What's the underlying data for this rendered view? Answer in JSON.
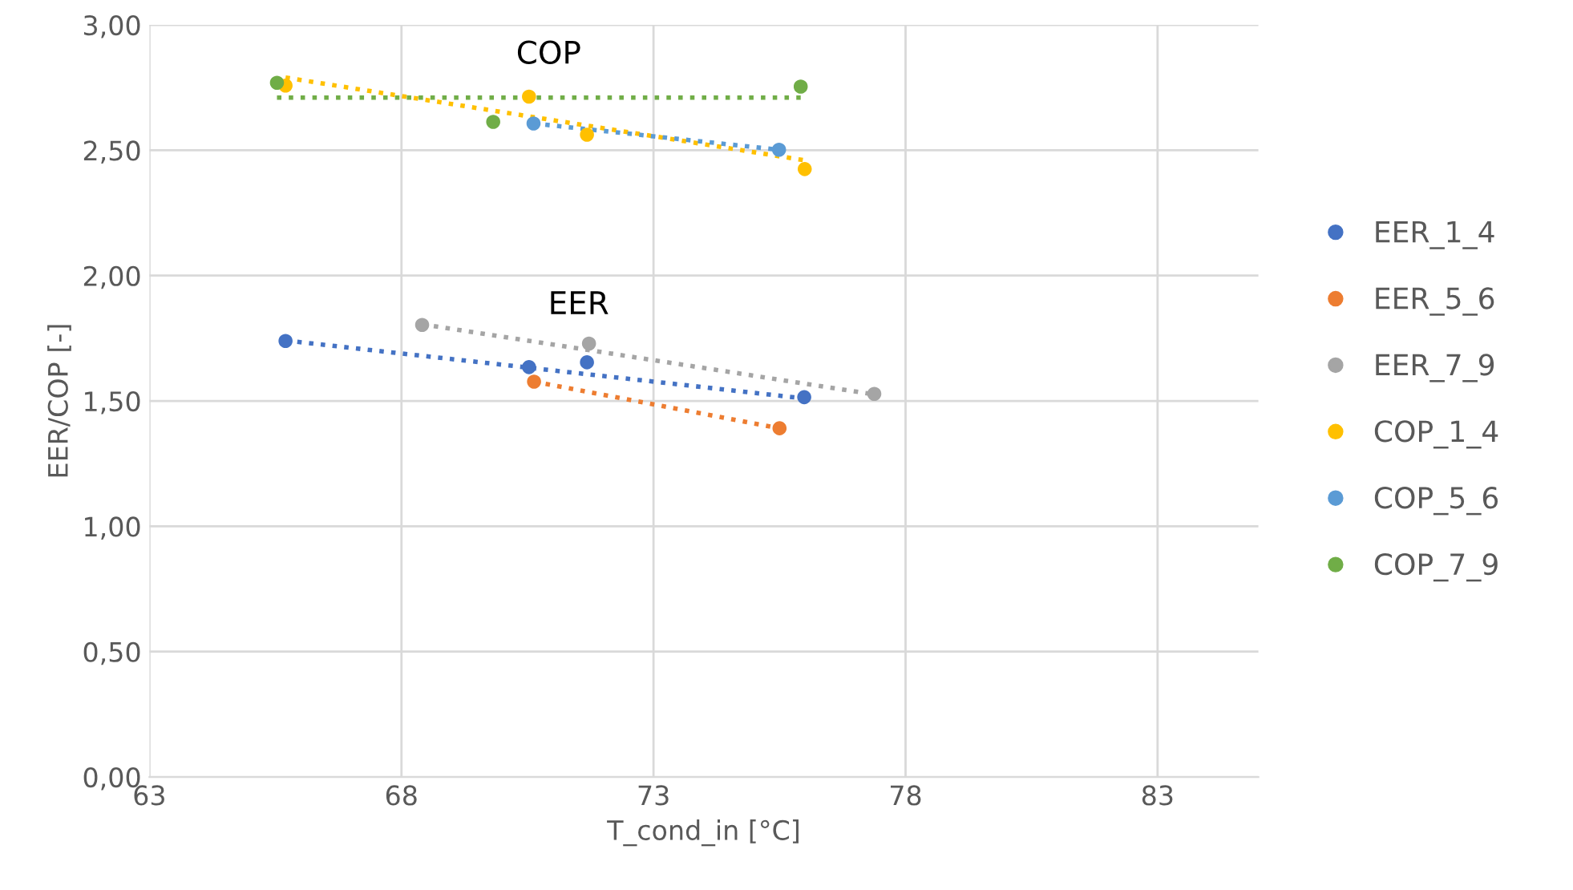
{
  "chart_data": {
    "type": "scatter",
    "xlabel": "T_cond_in [°C]",
    "ylabel": "EER/COP [-]",
    "xlim": [
      63,
      85
    ],
    "xticks": [
      63,
      68,
      73,
      78,
      83
    ],
    "ylim": [
      0,
      3.0
    ],
    "yticks": [
      {
        "value": 0,
        "label": "0,00"
      },
      {
        "value": 0.5,
        "label": "0,50"
      },
      {
        "value": 1.0,
        "label": "1,00"
      },
      {
        "value": 1.5,
        "label": "1,50"
      },
      {
        "value": 2.0,
        "label": "2,00"
      },
      {
        "value": 2.5,
        "label": "2,50"
      },
      {
        "value": 3.0,
        "label": "3,00"
      }
    ],
    "grid": true,
    "legend": "right",
    "marker": "circle",
    "annotations": [
      "COP",
      "EER"
    ],
    "series": [
      {
        "type": "line",
        "line_style": "dotted",
        "marker": "none",
        "color": "#4472c4",
        "x": [
          65.7,
          75.99
        ],
        "values": [
          1.741,
          1.51
        ]
      },
      {
        "type": "line",
        "line_style": "dotted",
        "marker": "none",
        "color": "#ed7d31",
        "x": [
          70.63,
          75.5
        ],
        "values": [
          1.577,
          1.391
        ]
      },
      {
        "type": "line",
        "line_style": "dotted",
        "marker": "none",
        "color": "#a5a5a5",
        "x": [
          68.41,
          77.38
        ],
        "values": [
          1.806,
          1.526
        ]
      },
      {
        "type": "line",
        "line_style": "dotted",
        "marker": "none",
        "color": "#ffc000",
        "x": [
          65.7,
          76.0
        ],
        "values": [
          2.79,
          2.46
        ]
      },
      {
        "type": "line",
        "line_style": "dotted",
        "marker": "none",
        "color": "#5b9bd5",
        "x": [
          70.62,
          75.49
        ],
        "values": [
          2.607,
          2.502
        ]
      },
      {
        "type": "line",
        "line_style": "dotted",
        "marker": "none",
        "color": "#70ad47",
        "x": [
          65.53,
          75.92
        ],
        "values": [
          2.71,
          2.71
        ]
      },
      {
        "name": "EER_1_4",
        "color": "#4472c4",
        "x": [
          65.7,
          70.53,
          71.68,
          75.99
        ],
        "values": [
          1.739,
          1.635,
          1.654,
          1.515
        ]
      },
      {
        "name": "EER_5_6",
        "color": "#ed7d31",
        "x": [
          70.63,
          75.5
        ],
        "values": [
          1.577,
          1.391
        ]
      },
      {
        "name": "EER_7_9",
        "color": "#a5a5a5",
        "x": [
          68.41,
          71.72,
          77.38
        ],
        "values": [
          1.803,
          1.729,
          1.528
        ]
      },
      {
        "name": "COP_1_4",
        "color": "#ffc000",
        "x": [
          65.7,
          70.53,
          71.68,
          76.0
        ],
        "values": [
          2.758,
          2.714,
          2.562,
          2.425
        ]
      },
      {
        "name": "COP_5_6",
        "color": "#5b9bd5",
        "x": [
          70.62,
          75.49
        ],
        "values": [
          2.607,
          2.502
        ]
      },
      {
        "name": "COP_7_9",
        "color": "#70ad47",
        "x": [
          65.53,
          69.82,
          75.92
        ],
        "values": [
          2.769,
          2.613,
          2.754
        ]
      }
    ]
  }
}
